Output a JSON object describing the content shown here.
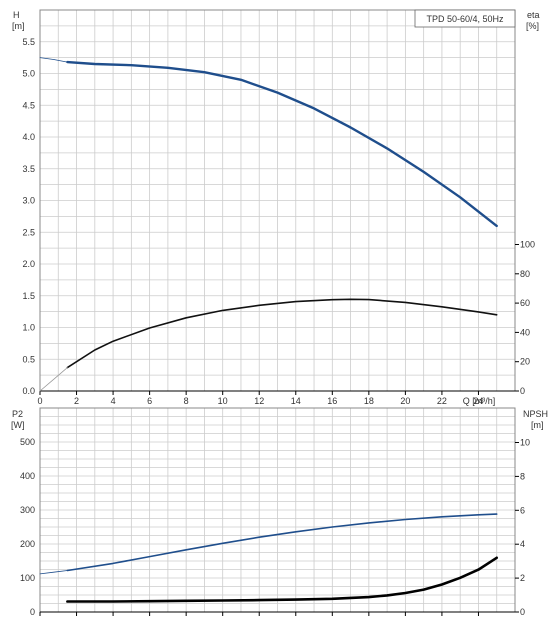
{
  "chart_data": [
    {
      "type": "line",
      "title": "TPD 50-60/4, 50Hz",
      "x_axis": {
        "label": "Q [m³/h]",
        "range": [
          0,
          26
        ],
        "ticks": [
          0,
          2,
          4,
          6,
          8,
          10,
          12,
          14,
          16,
          18,
          20,
          22,
          24
        ]
      },
      "y_left": {
        "label": "H",
        "unit": "[m]",
        "range": [
          0,
          6
        ],
        "ticks": [
          "0.0",
          "0.5",
          "1.0",
          "1.5",
          "2.0",
          "2.5",
          "3.0",
          "3.5",
          "4.0",
          "4.5",
          "5.0",
          "5.5"
        ]
      },
      "y_right": {
        "label": "eta",
        "unit": "[%]",
        "range": [
          0,
          100
        ],
        "ticks": [
          "0",
          "20",
          "40",
          "60",
          "80",
          "100"
        ]
      },
      "grid": true,
      "series": [
        {
          "axis": "left",
          "color": "#1f4e8c",
          "width": 2.4,
          "x": [
            1.5,
            3,
            5,
            7,
            9,
            11,
            13,
            15,
            17,
            19,
            21,
            23,
            25
          ],
          "y": [
            5.18,
            5.15,
            5.13,
            5.09,
            5.02,
            4.9,
            4.7,
            4.45,
            4.15,
            3.82,
            3.45,
            3.05,
            2.6
          ]
        },
        {
          "axis": "left",
          "color": "#1f4e8c",
          "width": 0.8,
          "x": [
            0,
            0.75,
            1.5
          ],
          "y": [
            5.25,
            5.22,
            5.18
          ]
        },
        {
          "axis": "right",
          "color": "#111111",
          "width": 1.6,
          "x": [
            1.5,
            3,
            4,
            6,
            8,
            10,
            12,
            14,
            16,
            17,
            18,
            20,
            22,
            24,
            25
          ],
          "y": [
            16,
            28,
            34,
            43,
            50,
            55,
            58.5,
            61,
            62.3,
            62.6,
            62.4,
            60.5,
            57.5,
            54,
            52
          ]
        },
        {
          "axis": "right",
          "color": "#999999",
          "width": 0.8,
          "x": [
            0,
            0.75,
            1.5
          ],
          "y": [
            0,
            8,
            16
          ]
        }
      ]
    },
    {
      "type": "line",
      "x_axis": {
        "label": "",
        "range": [
          0,
          26
        ]
      },
      "y_left": {
        "label": "P2",
        "unit": "[W]",
        "range": [
          0,
          600
        ],
        "ticks": [
          "0",
          "100",
          "200",
          "300",
          "400",
          "500"
        ]
      },
      "y_right": {
        "label": "NPSH",
        "unit": "[m]",
        "range": [
          0,
          12
        ],
        "ticks": [
          "0",
          "2",
          "4",
          "6",
          "8",
          "10"
        ]
      },
      "grid": true,
      "series": [
        {
          "axis": "left",
          "color": "#1f4e8c",
          "width": 1.6,
          "x": [
            1.5,
            4,
            6,
            8,
            10,
            12,
            14,
            16,
            18,
            20,
            22,
            24,
            25
          ],
          "y": [
            122,
            143,
            163,
            183,
            202,
            220,
            236,
            250,
            262,
            272,
            280,
            286,
            288
          ]
        },
        {
          "axis": "left",
          "color": "#1f4e8c",
          "width": 0.8,
          "x": [
            0,
            0.75,
            1.5
          ],
          "y": [
            112,
            117,
            122
          ]
        },
        {
          "axis": "right",
          "color": "#000000",
          "width": 2.6,
          "x": [
            1.5,
            4,
            6,
            8,
            10,
            12,
            14,
            16,
            18,
            19,
            20,
            21,
            22,
            23,
            24,
            25
          ],
          "y": [
            0.62,
            0.62,
            0.64,
            0.66,
            0.68,
            0.7,
            0.73,
            0.78,
            0.88,
            0.98,
            1.12,
            1.32,
            1.62,
            2.02,
            2.5,
            3.2
          ]
        }
      ]
    }
  ]
}
